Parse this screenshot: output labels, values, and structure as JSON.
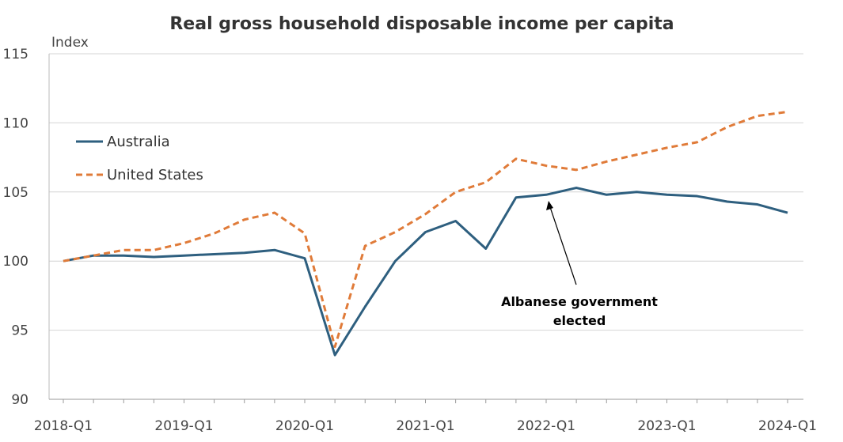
{
  "chart_data": {
    "type": "line",
    "title": "Real gross household disposable income per capita",
    "ylabel": "Index",
    "xlabel": "",
    "ylim": [
      90,
      115
    ],
    "yticks": [
      90,
      95,
      100,
      105,
      110,
      115
    ],
    "grid": true,
    "legend_position": "top-left",
    "x": [
      "2018-Q1",
      "2018-Q2",
      "2018-Q3",
      "2018-Q4",
      "2019-Q1",
      "2019-Q2",
      "2019-Q3",
      "2019-Q4",
      "2020-Q1",
      "2020-Q2",
      "2020-Q3",
      "2020-Q4",
      "2021-Q1",
      "2021-Q2",
      "2021-Q3",
      "2021-Q4",
      "2022-Q1",
      "2022-Q2",
      "2022-Q3",
      "2022-Q4",
      "2023-Q1",
      "2023-Q2",
      "2023-Q3",
      "2023-Q4",
      "2024-Q1"
    ],
    "xtick_labels": [
      "2018-Q1",
      "2019-Q1",
      "2020-Q1",
      "2021-Q1",
      "2022-Q1",
      "2023-Q1",
      "2024-Q1"
    ],
    "series": [
      {
        "name": "Australia",
        "color": "#2e5f7f",
        "style": "solid",
        "values": [
          100.0,
          100.4,
          100.4,
          100.3,
          100.4,
          100.5,
          100.6,
          100.8,
          100.2,
          93.2,
          96.7,
          100.0,
          102.1,
          102.9,
          100.9,
          104.6,
          104.8,
          105.3,
          104.8,
          105.0,
          104.8,
          104.7,
          104.3,
          104.1,
          103.5
        ]
      },
      {
        "name": "United States",
        "color": "#e07b39",
        "style": "dashed",
        "values": [
          100.0,
          100.4,
          100.8,
          100.8,
          101.3,
          102.0,
          103.0,
          103.5,
          102.0,
          93.8,
          101.1,
          102.1,
          103.4,
          105.0,
          105.7,
          107.4,
          106.9,
          106.6,
          107.2,
          107.7,
          108.2,
          108.6,
          109.7,
          110.5,
          110.8
        ]
      }
    ],
    "annotation": {
      "lines": [
        "Albanese government",
        "elected"
      ],
      "points_to": "2022-Q2"
    }
  }
}
